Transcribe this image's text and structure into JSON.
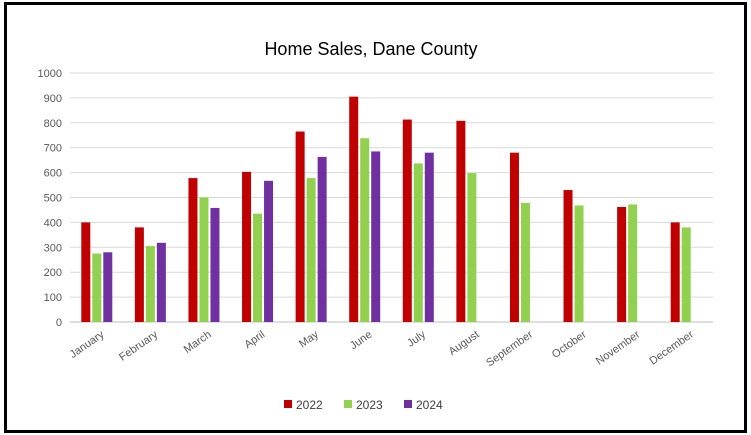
{
  "chart_data": {
    "type": "bar",
    "title": "Home Sales, Dane County",
    "xlabel": "",
    "ylabel": "",
    "ylim": [
      0,
      1000
    ],
    "yticks": [
      0,
      100,
      200,
      300,
      400,
      500,
      600,
      700,
      800,
      900,
      1000
    ],
    "grid": true,
    "legend_position": "bottom",
    "categories": [
      "January",
      "February",
      "March",
      "April",
      "May",
      "June",
      "July",
      "August",
      "September",
      "October",
      "November",
      "December"
    ],
    "series": [
      {
        "name": "2022",
        "color": "#c00000",
        "values": [
          400,
          380,
          578,
          603,
          765,
          905,
          813,
          808,
          680,
          530,
          462,
          400
        ]
      },
      {
        "name": "2023",
        "color": "#92d050",
        "values": [
          275,
          305,
          500,
          435,
          578,
          738,
          637,
          598,
          478,
          468,
          472,
          380
        ]
      },
      {
        "name": "2024",
        "color": "#7030a0",
        "values": [
          280,
          318,
          458,
          567,
          663,
          685,
          680,
          null,
          null,
          null,
          null,
          null
        ]
      }
    ]
  }
}
